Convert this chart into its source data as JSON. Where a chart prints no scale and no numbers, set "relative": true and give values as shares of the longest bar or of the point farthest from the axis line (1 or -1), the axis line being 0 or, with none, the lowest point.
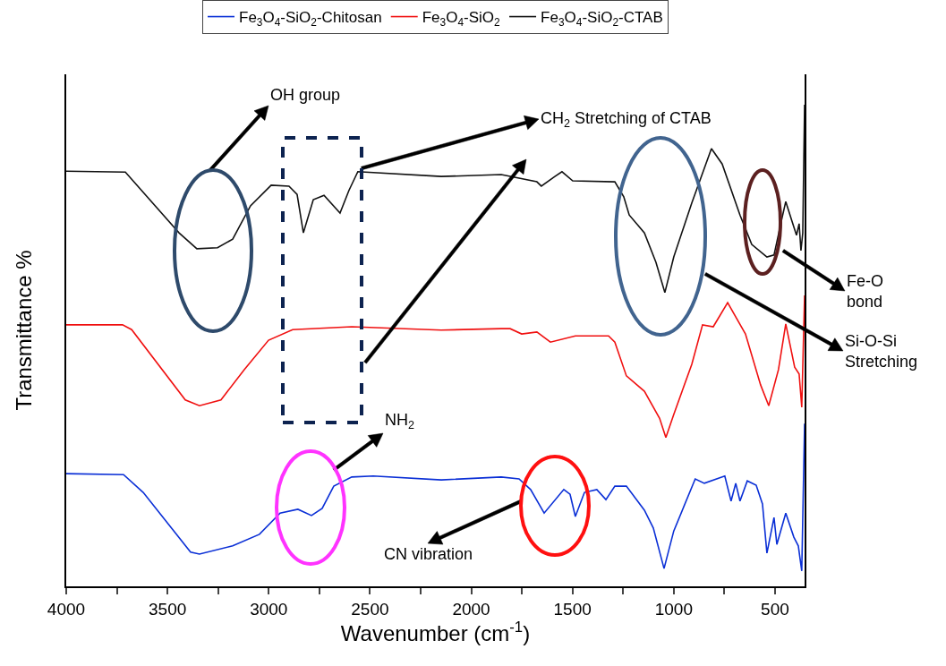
{
  "chart_data": {
    "type": "line",
    "relative": true,
    "xlabel": "Wavenumber (cm$^{-1}$)",
    "ylabel": "Transmittance %",
    "xlim": [
      4000,
      354
    ],
    "xticks": [
      4000,
      {
        "value": 3750,
        "label": null
      },
      3500,
      {
        "value": 3250,
        "label": null
      },
      3000,
      {
        "value": 2750,
        "label": null
      },
      2500,
      {
        "value": 2250,
        "label": null
      },
      2000,
      {
        "value": 1750,
        "label": null
      },
      1500,
      {
        "value": 1250,
        "label": null
      },
      1000,
      {
        "value": 750,
        "label": null
      },
      500
    ],
    "legend": "top",
    "marker": "none",
    "line_style": "solid",
    "series": [
      {
        "name": "Fe$_{3}$O$_{4}$-SiO$_{2}$-Chitosan",
        "color": "#0a2fd6",
        "x": [
          4000,
          3717,
          3620,
          3386,
          3342,
          3178,
          3046,
          2944,
          2856,
          2789,
          2736,
          2679,
          2590,
          2484,
          2148,
          1852,
          1764,
          1707,
          1640,
          1543,
          1512,
          1486,
          1441,
          1380,
          1335,
          1291,
          1234,
          1145,
          1101,
          1048,
          1000,
          894,
          849,
          748,
          717,
          694,
          673,
          637,
          593,
          562,
          540,
          505,
          491,
          447,
          407,
          385,
          368,
          354
        ],
        "values": [
          0.234,
          0.232,
          0.195,
          0.071,
          0.067,
          0.084,
          0.108,
          0.152,
          0.16,
          0.147,
          0.162,
          0.208,
          0.227,
          0.229,
          0.221,
          0.227,
          0.223,
          0.201,
          0.152,
          0.201,
          0.191,
          0.145,
          0.195,
          0.201,
          0.18,
          0.208,
          0.208,
          0.158,
          0.121,
          0.037,
          0.115,
          0.223,
          0.214,
          0.229,
          0.177,
          0.214,
          0.177,
          0.219,
          0.21,
          0.171,
          0.069,
          0.143,
          0.087,
          0.152,
          0.102,
          0.084,
          0.032,
          0.338
        ]
      },
      {
        "name": "Fe$_{3}$O$_{4}$-SiO$_{2}$",
        "color": "#f01010",
        "x": [
          4000,
          3722,
          3677,
          3412,
          3342,
          3236,
          3121,
          3001,
          2882,
          2590,
          2148,
          1852,
          1808,
          1751,
          1676,
          1609,
          1486,
          1322,
          1291,
          1234,
          1145,
          1070,
          1039,
          1000,
          911,
          858,
          805,
          734,
          646,
          571,
          531,
          483,
          447,
          403,
          381,
          368,
          354
        ],
        "values": [
          0.543,
          0.543,
          0.533,
          0.387,
          0.375,
          0.387,
          0.45,
          0.511,
          0.533,
          0.539,
          0.532,
          0.535,
          0.535,
          0.524,
          0.528,
          0.507,
          0.52,
          0.52,
          0.507,
          0.437,
          0.405,
          0.349,
          0.309,
          0.357,
          0.461,
          0.543,
          0.539,
          0.589,
          0.524,
          0.418,
          0.375,
          0.45,
          0.545,
          0.455,
          0.441,
          0.372,
          0.604
        ]
      },
      {
        "name": "Fe$_{3}$O$_{4}$-SiO$_{2}$-CTAB",
        "color": "#111111",
        "x": [
          4000,
          3708,
          3443,
          3355,
          3253,
          3178,
          3090,
          2988,
          2900,
          2860,
          2829,
          2780,
          2727,
          2648,
          2604,
          2560,
          2148,
          1852,
          1676,
          1654,
          1587,
          1552,
          1499,
          1291,
          1247,
          1220,
          1145,
          1088,
          1044,
          1000,
          911,
          814,
          761,
          673,
          615,
          540,
          505,
          469,
          447,
          416,
          394,
          381,
          372,
          363,
          354
        ],
        "values": [
          0.862,
          0.86,
          0.734,
          0.701,
          0.703,
          0.721,
          0.79,
          0.833,
          0.831,
          0.814,
          0.734,
          0.803,
          0.812,
          0.775,
          0.822,
          0.861,
          0.851,
          0.855,
          0.84,
          0.831,
          0.851,
          0.861,
          0.842,
          0.84,
          0.809,
          0.771,
          0.734,
          0.673,
          0.61,
          0.684,
          0.796,
          0.909,
          0.877,
          0.771,
          0.71,
          0.684,
          0.688,
          0.758,
          0.799,
          0.758,
          0.729,
          0.753,
          0.697,
          0.734,
          1.0
        ]
      }
    ],
    "annotations": [
      "OH group",
      "CH$_{2}$ Stretching of CTAB",
      "NH$_{2}$",
      "CN vibration",
      "Fe-O\nbond",
      "Si-O-Si\nStretching"
    ]
  }
}
